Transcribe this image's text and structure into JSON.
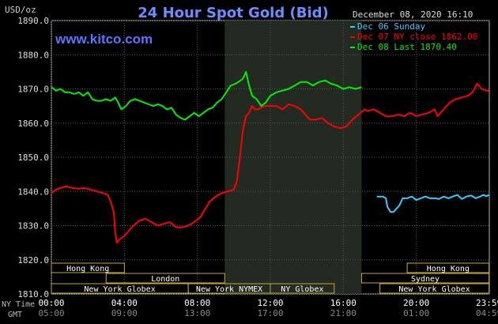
{
  "chart_data": {
    "type": "line",
    "title": "24 Hour Spot Gold (Bid)",
    "website": "www.kitco.com",
    "timestamp": "December 08, 2020 16:10",
    "ylabel": "USD/oz",
    "ylim": [
      1810,
      1890
    ],
    "y_ticks": [
      "1890.0",
      "1880.0",
      "1870.0",
      "1860.0",
      "1850.0",
      "1840.0",
      "1830.0",
      "1820.0",
      "1810.0"
    ],
    "xlim": [
      0,
      1440
    ],
    "x_ticks": [
      {
        "x": 0,
        "ny": "00:00",
        "gmt": "05:00"
      },
      {
        "x": 240,
        "ny": "04:00",
        "gmt": "09:00"
      },
      {
        "x": 480,
        "ny": "08:00",
        "gmt": "13:00"
      },
      {
        "x": 720,
        "ny": "12:00",
        "gmt": "17:00"
      },
      {
        "x": 960,
        "ny": "16:00",
        "gmt": "21:00"
      },
      {
        "x": 1200,
        "ny": "20:00",
        "gmt": "01:00"
      },
      {
        "x": 1439,
        "ny": "23:59",
        "gmt": "04:59"
      }
    ],
    "x_axis_labels": {
      "ny": "NY Time",
      "gmt": "GMT"
    },
    "grid": true,
    "highlight_band": {
      "from": 570,
      "to": 1020
    },
    "legend_position": "top-right",
    "series": [
      {
        "name": "Dec 06 Sunday",
        "color": "#33ccff",
        "points": [
          [
            1070,
            1838.5
          ],
          [
            1090,
            1838.5
          ],
          [
            1100,
            1838
          ],
          [
            1105,
            1835.5
          ],
          [
            1115,
            1834
          ],
          [
            1125,
            1834
          ],
          [
            1135,
            1835
          ],
          [
            1145,
            1836
          ],
          [
            1155,
            1838
          ],
          [
            1170,
            1838
          ],
          [
            1185,
            1838.5
          ],
          [
            1200,
            1837.5
          ],
          [
            1215,
            1838
          ],
          [
            1230,
            1838.5
          ],
          [
            1245,
            1838
          ],
          [
            1260,
            1838
          ],
          [
            1275,
            1837.8
          ],
          [
            1290,
            1838.5
          ],
          [
            1305,
            1838
          ],
          [
            1320,
            1838.5
          ],
          [
            1335,
            1839
          ],
          [
            1350,
            1837.8
          ],
          [
            1365,
            1838.5
          ],
          [
            1380,
            1838.8
          ],
          [
            1395,
            1838
          ],
          [
            1410,
            1838.5
          ],
          [
            1420,
            1839
          ],
          [
            1430,
            1838.6
          ],
          [
            1439,
            1839
          ]
        ]
      },
      {
        "name": "Dec 07 NY close 1862.00",
        "color": "#ff0000",
        "points": [
          [
            0,
            1839.5
          ],
          [
            15,
            1840.5
          ],
          [
            30,
            1841
          ],
          [
            50,
            1841.5
          ],
          [
            70,
            1841
          ],
          [
            90,
            1840.8
          ],
          [
            110,
            1841
          ],
          [
            130,
            1840.5
          ],
          [
            150,
            1840
          ],
          [
            170,
            1839.5
          ],
          [
            185,
            1839
          ],
          [
            195,
            1837
          ],
          [
            205,
            1834
          ],
          [
            210,
            1828
          ],
          [
            215,
            1825
          ],
          [
            225,
            1826
          ],
          [
            240,
            1827
          ],
          [
            255,
            1828.5
          ],
          [
            270,
            1830
          ],
          [
            290,
            1831.5
          ],
          [
            310,
            1832
          ],
          [
            330,
            1831
          ],
          [
            350,
            1830
          ],
          [
            370,
            1830.5
          ],
          [
            390,
            1831
          ],
          [
            410,
            1829.5
          ],
          [
            430,
            1829.5
          ],
          [
            450,
            1830
          ],
          [
            470,
            1831
          ],
          [
            490,
            1832.5
          ],
          [
            500,
            1834
          ],
          [
            520,
            1837
          ],
          [
            540,
            1838.5
          ],
          [
            560,
            1839.5
          ],
          [
            580,
            1840
          ],
          [
            600,
            1840.5
          ],
          [
            610,
            1843
          ],
          [
            620,
            1850
          ],
          [
            630,
            1858
          ],
          [
            640,
            1862
          ],
          [
            650,
            1863
          ],
          [
            660,
            1865
          ],
          [
            670,
            1864
          ],
          [
            680,
            1864
          ],
          [
            700,
            1865
          ],
          [
            720,
            1865
          ],
          [
            740,
            1865
          ],
          [
            760,
            1864
          ],
          [
            780,
            1865.5
          ],
          [
            800,
            1865
          ],
          [
            820,
            1864
          ],
          [
            840,
            1862
          ],
          [
            850,
            1861
          ],
          [
            870,
            1861
          ],
          [
            890,
            1861.5
          ],
          [
            910,
            1860
          ],
          [
            930,
            1859
          ],
          [
            950,
            1858.5
          ],
          [
            970,
            1859
          ],
          [
            990,
            1861
          ],
          [
            1010,
            1862.5
          ],
          [
            1030,
            1864
          ],
          [
            1040,
            1863.5
          ],
          [
            1060,
            1864
          ],
          [
            1080,
            1863
          ],
          [
            1100,
            1862
          ],
          [
            1120,
            1862
          ],
          [
            1140,
            1862.5
          ],
          [
            1160,
            1862
          ],
          [
            1180,
            1863
          ],
          [
            1200,
            1862
          ],
          [
            1220,
            1862.5
          ],
          [
            1240,
            1863
          ],
          [
            1260,
            1864
          ],
          [
            1270,
            1862
          ],
          [
            1290,
            1864
          ],
          [
            1310,
            1866
          ],
          [
            1330,
            1867
          ],
          [
            1350,
            1867.5
          ],
          [
            1370,
            1868
          ],
          [
            1385,
            1869
          ],
          [
            1400,
            1871.5
          ],
          [
            1415,
            1870
          ],
          [
            1430,
            1869.5
          ],
          [
            1439,
            1869.5
          ]
        ]
      },
      {
        "name": "Dec 08 Last 1870.40",
        "color": "#00ee00",
        "points": [
          [
            0,
            1870.5
          ],
          [
            15,
            1869.5
          ],
          [
            30,
            1870
          ],
          [
            45,
            1869
          ],
          [
            60,
            1869
          ],
          [
            75,
            1868.5
          ],
          [
            90,
            1869
          ],
          [
            105,
            1868
          ],
          [
            120,
            1869
          ],
          [
            135,
            1867
          ],
          [
            150,
            1866.5
          ],
          [
            165,
            1866.5
          ],
          [
            180,
            1867
          ],
          [
            195,
            1866.5
          ],
          [
            210,
            1867.5
          ],
          [
            220,
            1866
          ],
          [
            230,
            1864
          ],
          [
            245,
            1865
          ],
          [
            260,
            1866.5
          ],
          [
            275,
            1867
          ],
          [
            290,
            1866.5
          ],
          [
            305,
            1866
          ],
          [
            320,
            1865.5
          ],
          [
            335,
            1865
          ],
          [
            350,
            1865.5
          ],
          [
            365,
            1865
          ],
          [
            380,
            1864
          ],
          [
            395,
            1864.5
          ],
          [
            410,
            1862.5
          ],
          [
            425,
            1861.5
          ],
          [
            440,
            1861
          ],
          [
            455,
            1862
          ],
          [
            470,
            1863
          ],
          [
            485,
            1862
          ],
          [
            500,
            1863
          ],
          [
            515,
            1864
          ],
          [
            530,
            1864.5
          ],
          [
            545,
            1866
          ],
          [
            560,
            1867
          ],
          [
            575,
            1869
          ],
          [
            590,
            1871
          ],
          [
            605,
            1871.5
          ],
          [
            615,
            1872
          ],
          [
            630,
            1873
          ],
          [
            640,
            1875
          ],
          [
            650,
            1871
          ],
          [
            660,
            1868
          ],
          [
            675,
            1867
          ],
          [
            690,
            1865
          ],
          [
            705,
            1866
          ],
          [
            720,
            1868
          ],
          [
            740,
            1869
          ],
          [
            760,
            1869.5
          ],
          [
            780,
            1870
          ],
          [
            800,
            1871
          ],
          [
            820,
            1872
          ],
          [
            840,
            1872
          ],
          [
            860,
            1871
          ],
          [
            880,
            1872
          ],
          [
            900,
            1872.5
          ],
          [
            920,
            1871.5
          ],
          [
            940,
            1871
          ],
          [
            960,
            1870
          ],
          [
            980,
            1870.5
          ],
          [
            1000,
            1870
          ],
          [
            1020,
            1870.5
          ]
        ]
      }
    ],
    "sessions": [
      {
        "label": "Hong Kong",
        "start": 0,
        "end": 240,
        "row": 1
      },
      {
        "label": "London",
        "start": 180,
        "end": 570,
        "row": 2
      },
      {
        "label": "New York Globex",
        "start": 0,
        "end": 450,
        "row": 3
      },
      {
        "label": "New York NYMEX",
        "start": 450,
        "end": 720,
        "row": 3
      },
      {
        "label": "NY Globex",
        "start": 720,
        "end": 930,
        "row": 3
      },
      {
        "label": "Hong Kong",
        "start": 1170,
        "end": 1439,
        "row": 1
      },
      {
        "label": "Sydney",
        "start": 1020,
        "end": 1439,
        "row": 2
      },
      {
        "label": "New York Globex",
        "start": 1080,
        "end": 1439,
        "row": 3
      }
    ]
  }
}
